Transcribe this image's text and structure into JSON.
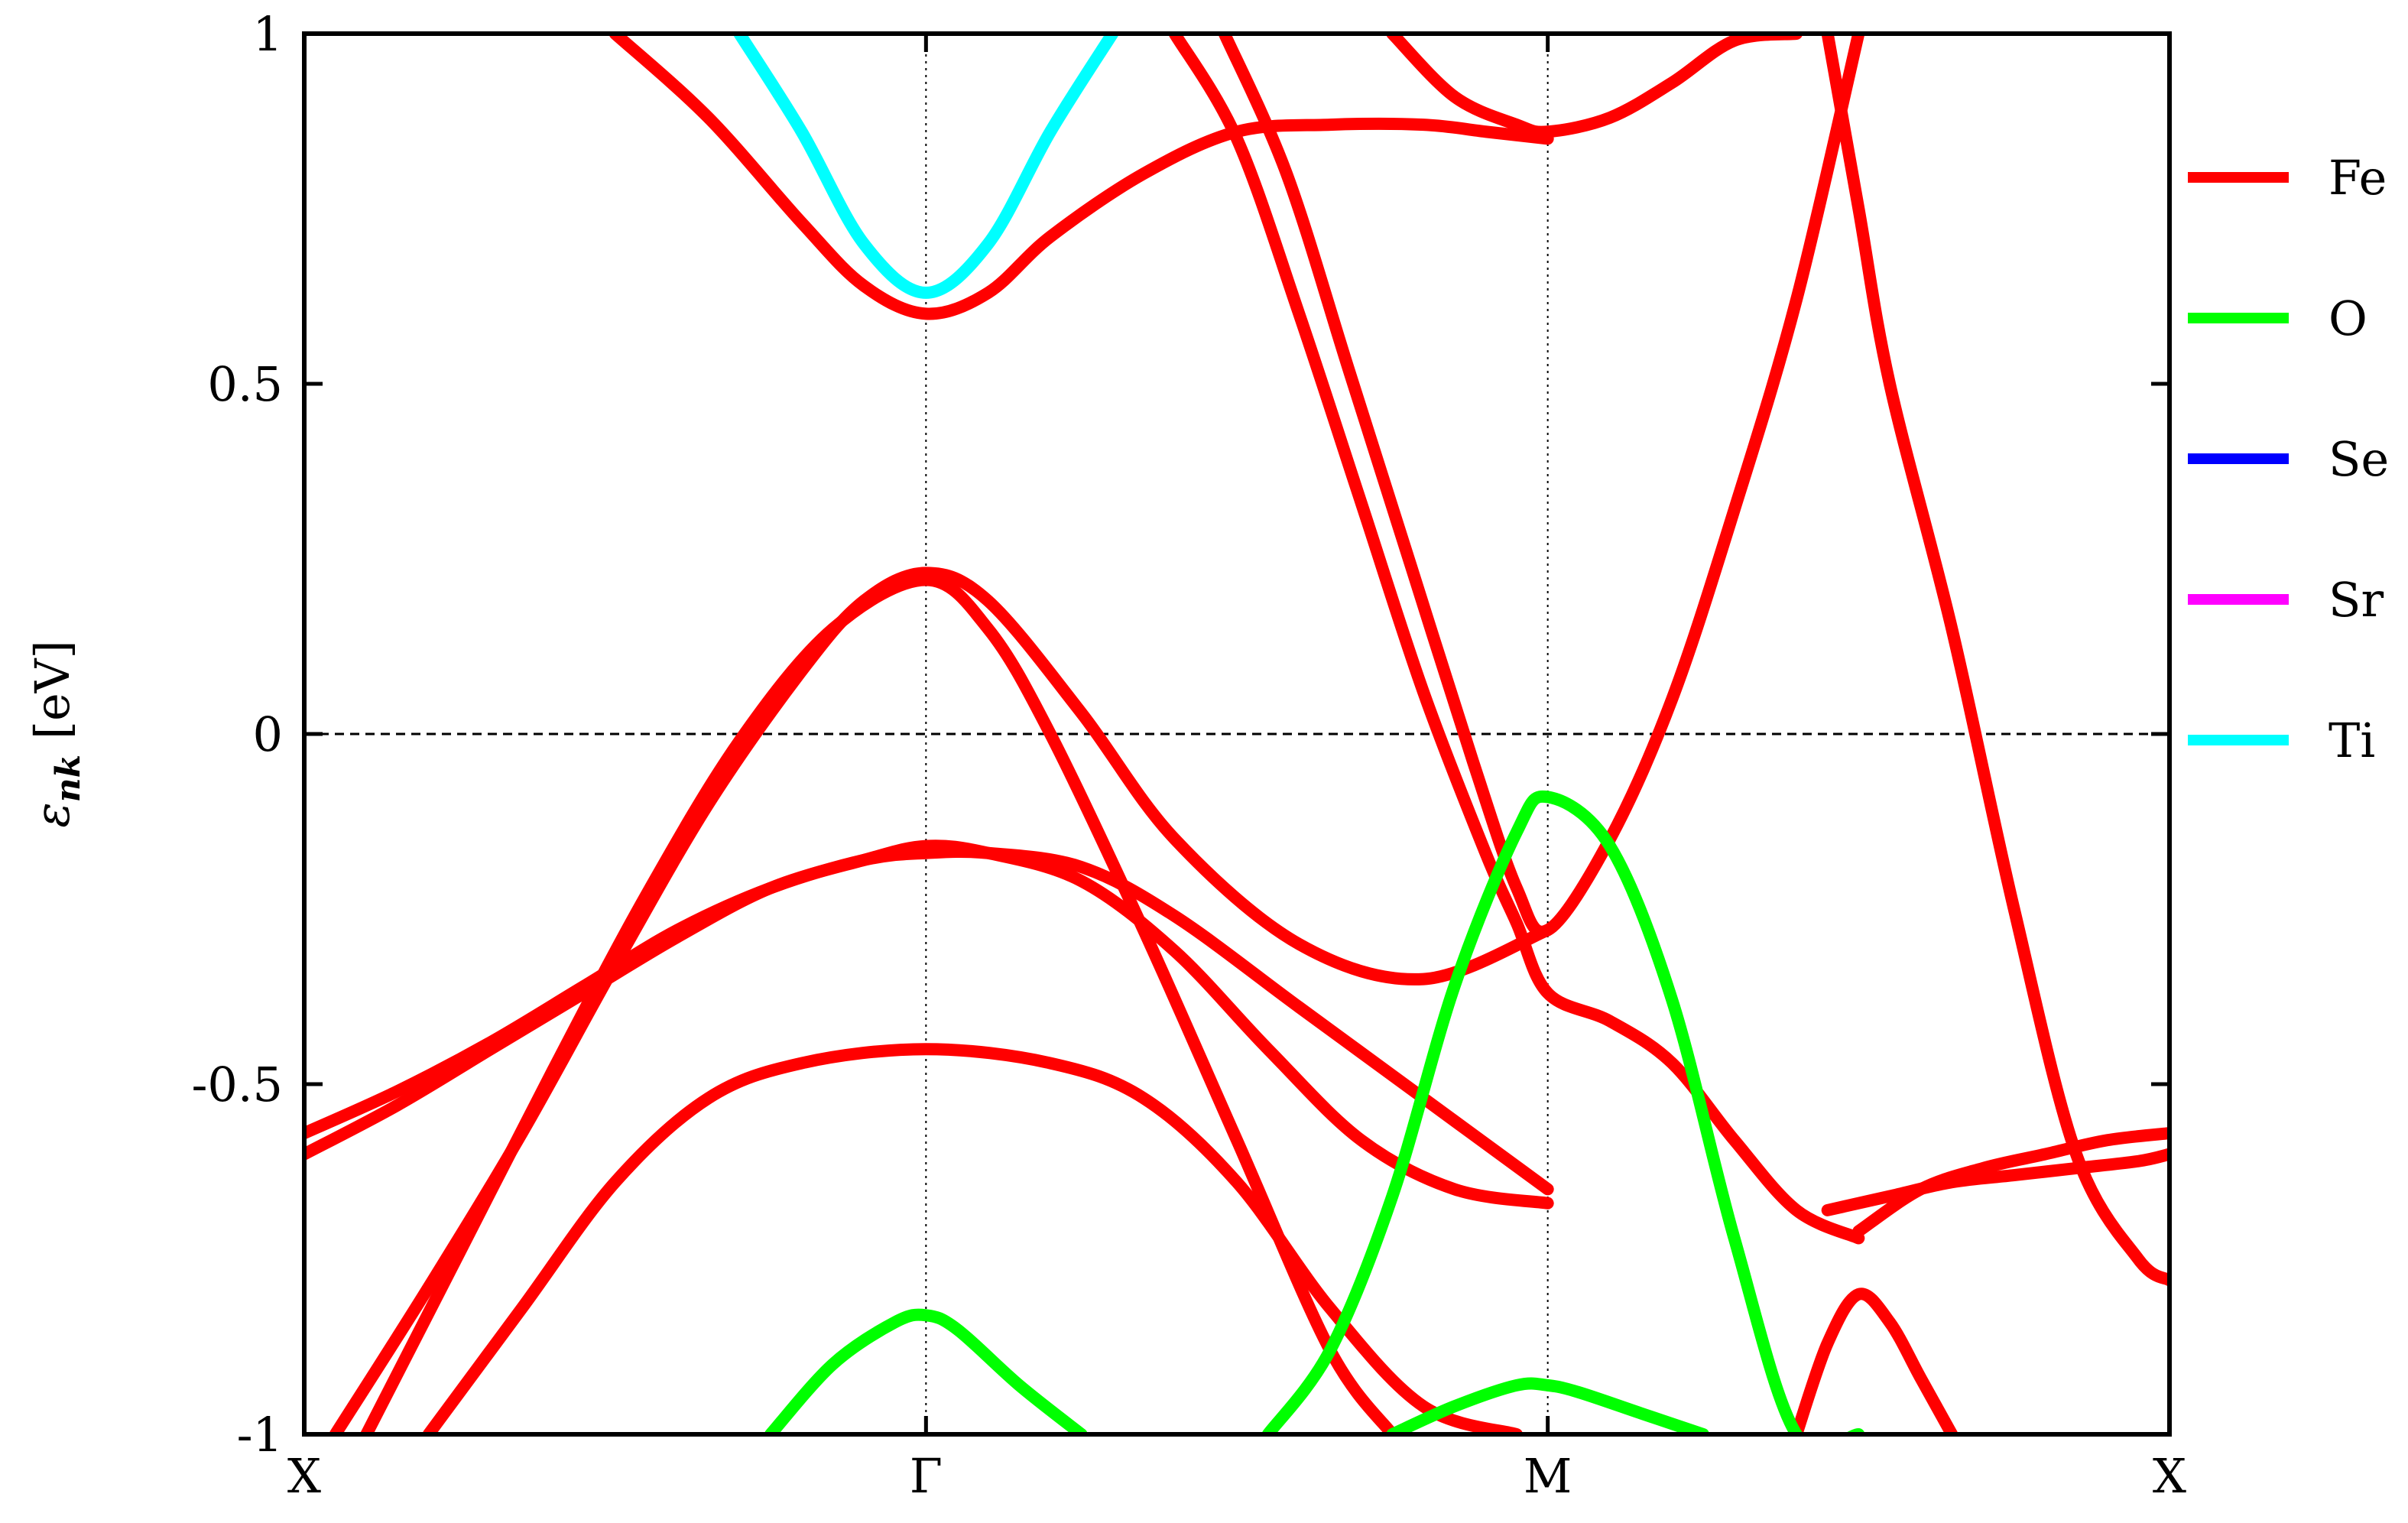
{
  "chart_data": {
    "type": "line",
    "ylabel": "ε_nk [eV]",
    "ylabel_main": "ε",
    "ylabel_sub": "nk",
    "ylabel_unit": " [eV]",
    "ylim": [
      -1,
      1
    ],
    "xlim": [
      0,
      3
    ],
    "yticks": [
      {
        "value": 1,
        "label": "1"
      },
      {
        "value": 0.5,
        "label": "0.5"
      },
      {
        "value": 0,
        "label": "0"
      },
      {
        "value": -0.5,
        "label": "-0.5"
      },
      {
        "value": -1,
        "label": "-1"
      }
    ],
    "xticks": [
      {
        "value": 0,
        "label": "X"
      },
      {
        "value": 1,
        "label": "Γ"
      },
      {
        "value": 2,
        "label": "M"
      },
      {
        "value": 3,
        "label": "X"
      }
    ],
    "fermi_level": 0,
    "legend": {
      "position": "right",
      "entries": [
        {
          "name": "Fe",
          "color": "#ff0000"
        },
        {
          "name": "O",
          "color": "#00ff00"
        },
        {
          "name": "Se",
          "color": "#0000ff"
        },
        {
          "name": "Sr",
          "color": "#ff00ff"
        },
        {
          "name": "Ti",
          "color": "#00ffff"
        }
      ]
    },
    "series": [
      {
        "name": "Fe",
        "color": "#ff0000",
        "x": [
          0.0,
          0.15,
          0.3,
          0.45,
          0.6,
          0.75,
          0.9,
          1.0,
          1.1,
          1.25,
          1.4,
          1.6,
          1.8,
          2.0
        ],
        "y": [
          -0.57,
          -0.51,
          -0.44,
          -0.36,
          -0.28,
          -0.22,
          -0.18,
          -0.17,
          -0.17,
          -0.19,
          -0.26,
          -0.39,
          -0.52,
          -0.65
        ]
      },
      {
        "name": "Fe",
        "color": "#ff0000",
        "x": [
          0.0,
          0.15,
          0.3,
          0.45,
          0.6,
          0.75,
          0.9,
          1.0,
          1.1,
          1.25,
          1.4,
          1.55,
          1.7,
          1.85,
          2.0
        ],
        "y": [
          -0.6,
          -0.53,
          -0.45,
          -0.37,
          -0.29,
          -0.22,
          -0.18,
          -0.16,
          -0.17,
          -0.21,
          -0.31,
          -0.45,
          -0.58,
          -0.65,
          -0.67
        ]
      },
      {
        "name": "Fe",
        "color": "#ff0000",
        "x": [
          0.05,
          0.2,
          0.35,
          0.5,
          0.65,
          0.8,
          0.9,
          1.0,
          1.1,
          1.25,
          1.4,
          1.6,
          1.8,
          2.0
        ],
        "y": [
          -1.0,
          -0.79,
          -0.57,
          -0.33,
          -0.1,
          0.09,
          0.19,
          0.23,
          0.19,
          0.03,
          -0.15,
          -0.3,
          -0.35,
          -0.28
        ]
      },
      {
        "name": "Fe",
        "color": "#ff0000",
        "x": [
          0.1,
          0.25,
          0.4,
          0.55,
          0.7,
          0.85,
          1.0,
          1.1,
          1.2,
          1.35,
          1.5,
          1.65,
          1.75
        ],
        "y": [
          -1.0,
          -0.74,
          -0.48,
          -0.23,
          -0.01,
          0.15,
          0.22,
          0.15,
          0.0,
          -0.28,
          -0.58,
          -0.88,
          -1.0
        ]
      },
      {
        "name": "Fe",
        "color": "#ff0000",
        "x": [
          0.2,
          0.35,
          0.5,
          0.65,
          0.8,
          1.0,
          1.2,
          1.35,
          1.5,
          1.65,
          1.8,
          1.95
        ],
        "y": [
          -1.0,
          -0.82,
          -0.64,
          -0.52,
          -0.47,
          -0.45,
          -0.47,
          -0.52,
          -0.64,
          -0.82,
          -0.96,
          -1.0
        ]
      },
      {
        "name": "Fe",
        "color": "#ff0000",
        "x": [
          0.5,
          0.65,
          0.8,
          0.9,
          1.0,
          1.1,
          1.2,
          1.35,
          1.5,
          1.65,
          1.8,
          1.9,
          2.0
        ],
        "y": [
          1.0,
          0.88,
          0.73,
          0.64,
          0.6,
          0.63,
          0.71,
          0.8,
          0.86,
          0.87,
          0.87,
          0.86,
          0.85
        ]
      },
      {
        "name": "Fe",
        "color": "#ff0000",
        "x": [
          1.4,
          1.5,
          1.6,
          1.7,
          1.8,
          1.9,
          1.95,
          2.0,
          2.1,
          2.2,
          2.3,
          2.4,
          2.5
        ],
        "y": [
          1.0,
          0.85,
          0.6,
          0.33,
          0.06,
          -0.17,
          -0.27,
          -0.37,
          -0.41,
          -0.47,
          -0.58,
          -0.68,
          -0.72
        ]
      },
      {
        "name": "Fe",
        "color": "#ff0000",
        "x": [
          1.48,
          1.58,
          1.68,
          1.78,
          1.88,
          1.95,
          2.0,
          2.1,
          2.2,
          2.3,
          2.4,
          2.5
        ],
        "y": [
          1.0,
          0.8,
          0.52,
          0.24,
          -0.04,
          -0.22,
          -0.28,
          -0.15,
          0.05,
          0.32,
          0.62,
          1.0
        ]
      },
      {
        "name": "Fe",
        "color": "#ff0000",
        "x": [
          1.75,
          1.85,
          1.95,
          2.0,
          2.1,
          2.2,
          2.3,
          2.4
        ],
        "y": [
          1.0,
          0.91,
          0.87,
          0.86,
          0.88,
          0.93,
          0.99,
          1.0
        ]
      },
      {
        "name": "Fe",
        "color": "#ff0000",
        "x": [
          2.45,
          2.5,
          2.55,
          2.65,
          2.75,
          2.85,
          2.95,
          3.0
        ],
        "y": [
          1.0,
          0.75,
          0.5,
          0.15,
          -0.25,
          -0.6,
          -0.75,
          -0.78
        ]
      },
      {
        "name": "Fe",
        "color": "#ff0000",
        "x": [
          2.5,
          2.6,
          2.7,
          2.8,
          2.9,
          3.0
        ],
        "y": [
          -0.71,
          -0.65,
          -0.62,
          -0.6,
          -0.58,
          -0.57
        ]
      },
      {
        "name": "Fe",
        "color": "#ff0000",
        "x": [
          2.45,
          2.55,
          2.65,
          2.75,
          2.85,
          2.95,
          3.0
        ],
        "y": [
          -0.68,
          -0.66,
          -0.64,
          -0.63,
          -0.62,
          -0.61,
          -0.6
        ]
      },
      {
        "name": "Fe",
        "color": "#ff0000",
        "x": [
          2.4,
          2.45,
          2.5,
          2.55,
          2.6,
          2.65
        ],
        "y": [
          -1.0,
          -0.87,
          -0.8,
          -0.84,
          -0.92,
          -1.0
        ]
      },
      {
        "name": "O",
        "color": "#00ff00",
        "x": [
          0.75,
          0.85,
          0.95,
          1.0,
          1.05,
          1.15,
          1.25
        ],
        "y": [
          -1.0,
          -0.9,
          -0.84,
          -0.83,
          -0.85,
          -0.93,
          -1.0
        ]
      },
      {
        "name": "O",
        "color": "#00ff00",
        "x": [
          1.55,
          1.65,
          1.75,
          1.85,
          1.95,
          2.0,
          2.1,
          2.2,
          2.3,
          2.4,
          2.5
        ],
        "y": [
          -1.0,
          -0.88,
          -0.66,
          -0.36,
          -0.14,
          -0.09,
          -0.16,
          -0.38,
          -0.72,
          -1.0,
          -1.0
        ]
      },
      {
        "name": "O",
        "color": "#00ff00",
        "x": [
          1.75,
          1.85,
          1.95,
          2.0,
          2.05,
          2.15,
          2.25
        ],
        "y": [
          -1.0,
          -0.96,
          -0.93,
          -0.93,
          -0.94,
          -0.97,
          -1.0
        ]
      },
      {
        "name": "Ti",
        "color": "#00ffff",
        "x": [
          0.7,
          0.8,
          0.9,
          1.0,
          1.1,
          1.2,
          1.3
        ],
        "y": [
          1.0,
          0.86,
          0.7,
          0.63,
          0.7,
          0.86,
          1.0
        ]
      }
    ]
  }
}
